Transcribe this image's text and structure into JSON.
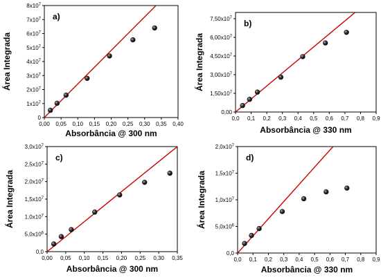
{
  "chart_data": [
    {
      "type": "scatter",
      "panel_label": "a)",
      "xlabel": "Absorbância @ 300 nm",
      "ylabel": "Área Integrada",
      "xlim": [
        0,
        0.4
      ],
      "ylim": [
        0,
        80000000
      ],
      "xticks": [
        0,
        0.05,
        0.1,
        0.15,
        0.2,
        0.25,
        0.3,
        0.35,
        0.4
      ],
      "xtick_labels": [
        "0,00",
        "0,05",
        "0,10",
        "0,15",
        "0,20",
        "0,25",
        "0,30",
        "0,35",
        "0,40"
      ],
      "yticks": [
        0,
        10000000,
        20000000,
        30000000,
        40000000,
        50000000,
        60000000,
        70000000,
        80000000
      ],
      "ytick_labels": [
        "0",
        "1x10^7",
        "2x10^7",
        "3x10^7",
        "4x10^7",
        "5x10^7",
        "6x10^7",
        "7x10^7",
        "8x10^7"
      ],
      "points": [
        [
          0.018,
          5200000
        ],
        [
          0.038,
          10200000
        ],
        [
          0.065,
          16000000
        ],
        [
          0.128,
          28000000
        ],
        [
          0.195,
          44000000
        ],
        [
          0.265,
          55500000
        ],
        [
          0.33,
          64000000
        ]
      ],
      "fit_line": [
        [
          0,
          0
        ],
        [
          0.334,
          80000000
        ]
      ],
      "marker_color": "#1a1a1a",
      "line_color": "#cc0000"
    },
    {
      "type": "scatter",
      "panel_label": "b)",
      "xlabel": "Absorbância @ 330 nm",
      "ylabel": "Área Integrada",
      "xlim": [
        0,
        0.9
      ],
      "ylim": [
        0,
        80000000
      ],
      "xticks": [
        0,
        0.1,
        0.2,
        0.3,
        0.4,
        0.5,
        0.6,
        0.7,
        0.8,
        0.9
      ],
      "xtick_labels": [
        "0,0",
        "0,1",
        "0,2",
        "0,3",
        "0,4",
        "0,5",
        "0,6",
        "0,7",
        "0,8",
        "0,9"
      ],
      "yticks": [
        0,
        15000000,
        30000000,
        45000000,
        60000000,
        75000000
      ],
      "ytick_labels": [
        "0,00",
        "1,50x10^7",
        "3,00x10^7",
        "4,50x10^7",
        "6,00x10^7",
        "7,50x10^7"
      ],
      "points": [
        [
          0.045,
          5200000
        ],
        [
          0.09,
          10200000
        ],
        [
          0.14,
          16000000
        ],
        [
          0.29,
          28000000
        ],
        [
          0.43,
          44500000
        ],
        [
          0.575,
          55500000
        ],
        [
          0.71,
          64000000
        ]
      ],
      "fit_line": [
        [
          0,
          0
        ],
        [
          0.765,
          80000000
        ]
      ],
      "marker_color": "#1a1a1a",
      "line_color": "#cc0000"
    },
    {
      "type": "scatter",
      "panel_label": "c)",
      "xlabel": "Absorbância @ 300 nm",
      "ylabel": "Área Integrada",
      "xlim": [
        0,
        0.35
      ],
      "ylim": [
        0,
        30000000
      ],
      "xticks": [
        0,
        0.05,
        0.1,
        0.15,
        0.2,
        0.25,
        0.3,
        0.35
      ],
      "xtick_labels": [
        "0,00",
        "0,05",
        "0,10",
        "0,15",
        "0,20",
        "0,25",
        "0,30",
        "0,35"
      ],
      "yticks": [
        0,
        5000000,
        10000000,
        15000000,
        20000000,
        25000000,
        30000000
      ],
      "ytick_labels": [
        "0,0",
        "5,0x10^6",
        "1,0x10^7",
        "1,5x10^7",
        "2,0x10^7",
        "2,5x10^7",
        "3,0x10^7"
      ],
      "points": [
        [
          0.018,
          2200000
        ],
        [
          0.038,
          4300000
        ],
        [
          0.065,
          6300000
        ],
        [
          0.128,
          11300000
        ],
        [
          0.195,
          16200000
        ],
        [
          0.262,
          19800000
        ],
        [
          0.33,
          22400000
        ]
      ],
      "fit_line": [
        [
          0,
          0
        ],
        [
          0.35,
          30000000
        ]
      ],
      "marker_color": "#1a1a1a",
      "line_color": "#cc0000"
    },
    {
      "type": "scatter",
      "panel_label": "d)",
      "xlabel": "Absorbância @ 330 nm",
      "ylabel": "Área Integrada",
      "xlim": [
        0,
        0.9
      ],
      "ylim": [
        0,
        20000000
      ],
      "xticks": [
        0,
        0.1,
        0.2,
        0.3,
        0.4,
        0.5,
        0.6,
        0.7,
        0.8,
        0.9
      ],
      "xtick_labels": [
        "0,0",
        "0,1",
        "0,2",
        "0,3",
        "0,4",
        "0,5",
        "0,6",
        "0,7",
        "0,8",
        "0,9"
      ],
      "yticks": [
        0,
        5000000,
        10000000,
        15000000,
        20000000
      ],
      "ytick_labels": [
        "0,0",
        "5,0x10^6",
        "1,0x10^7",
        "1,5x10^7",
        "2,0x10^7"
      ],
      "points": [
        [
          0.045,
          1800000
        ],
        [
          0.09,
          3300000
        ],
        [
          0.14,
          4600000
        ],
        [
          0.29,
          7800000
        ],
        [
          0.43,
          10200000
        ],
        [
          0.575,
          11500000
        ],
        [
          0.71,
          12200000
        ]
      ],
      "fit_line": [
        [
          0,
          0
        ],
        [
          0.62,
          20000000
        ]
      ],
      "marker_color": "#1a1a1a",
      "line_color": "#cc0000"
    }
  ]
}
